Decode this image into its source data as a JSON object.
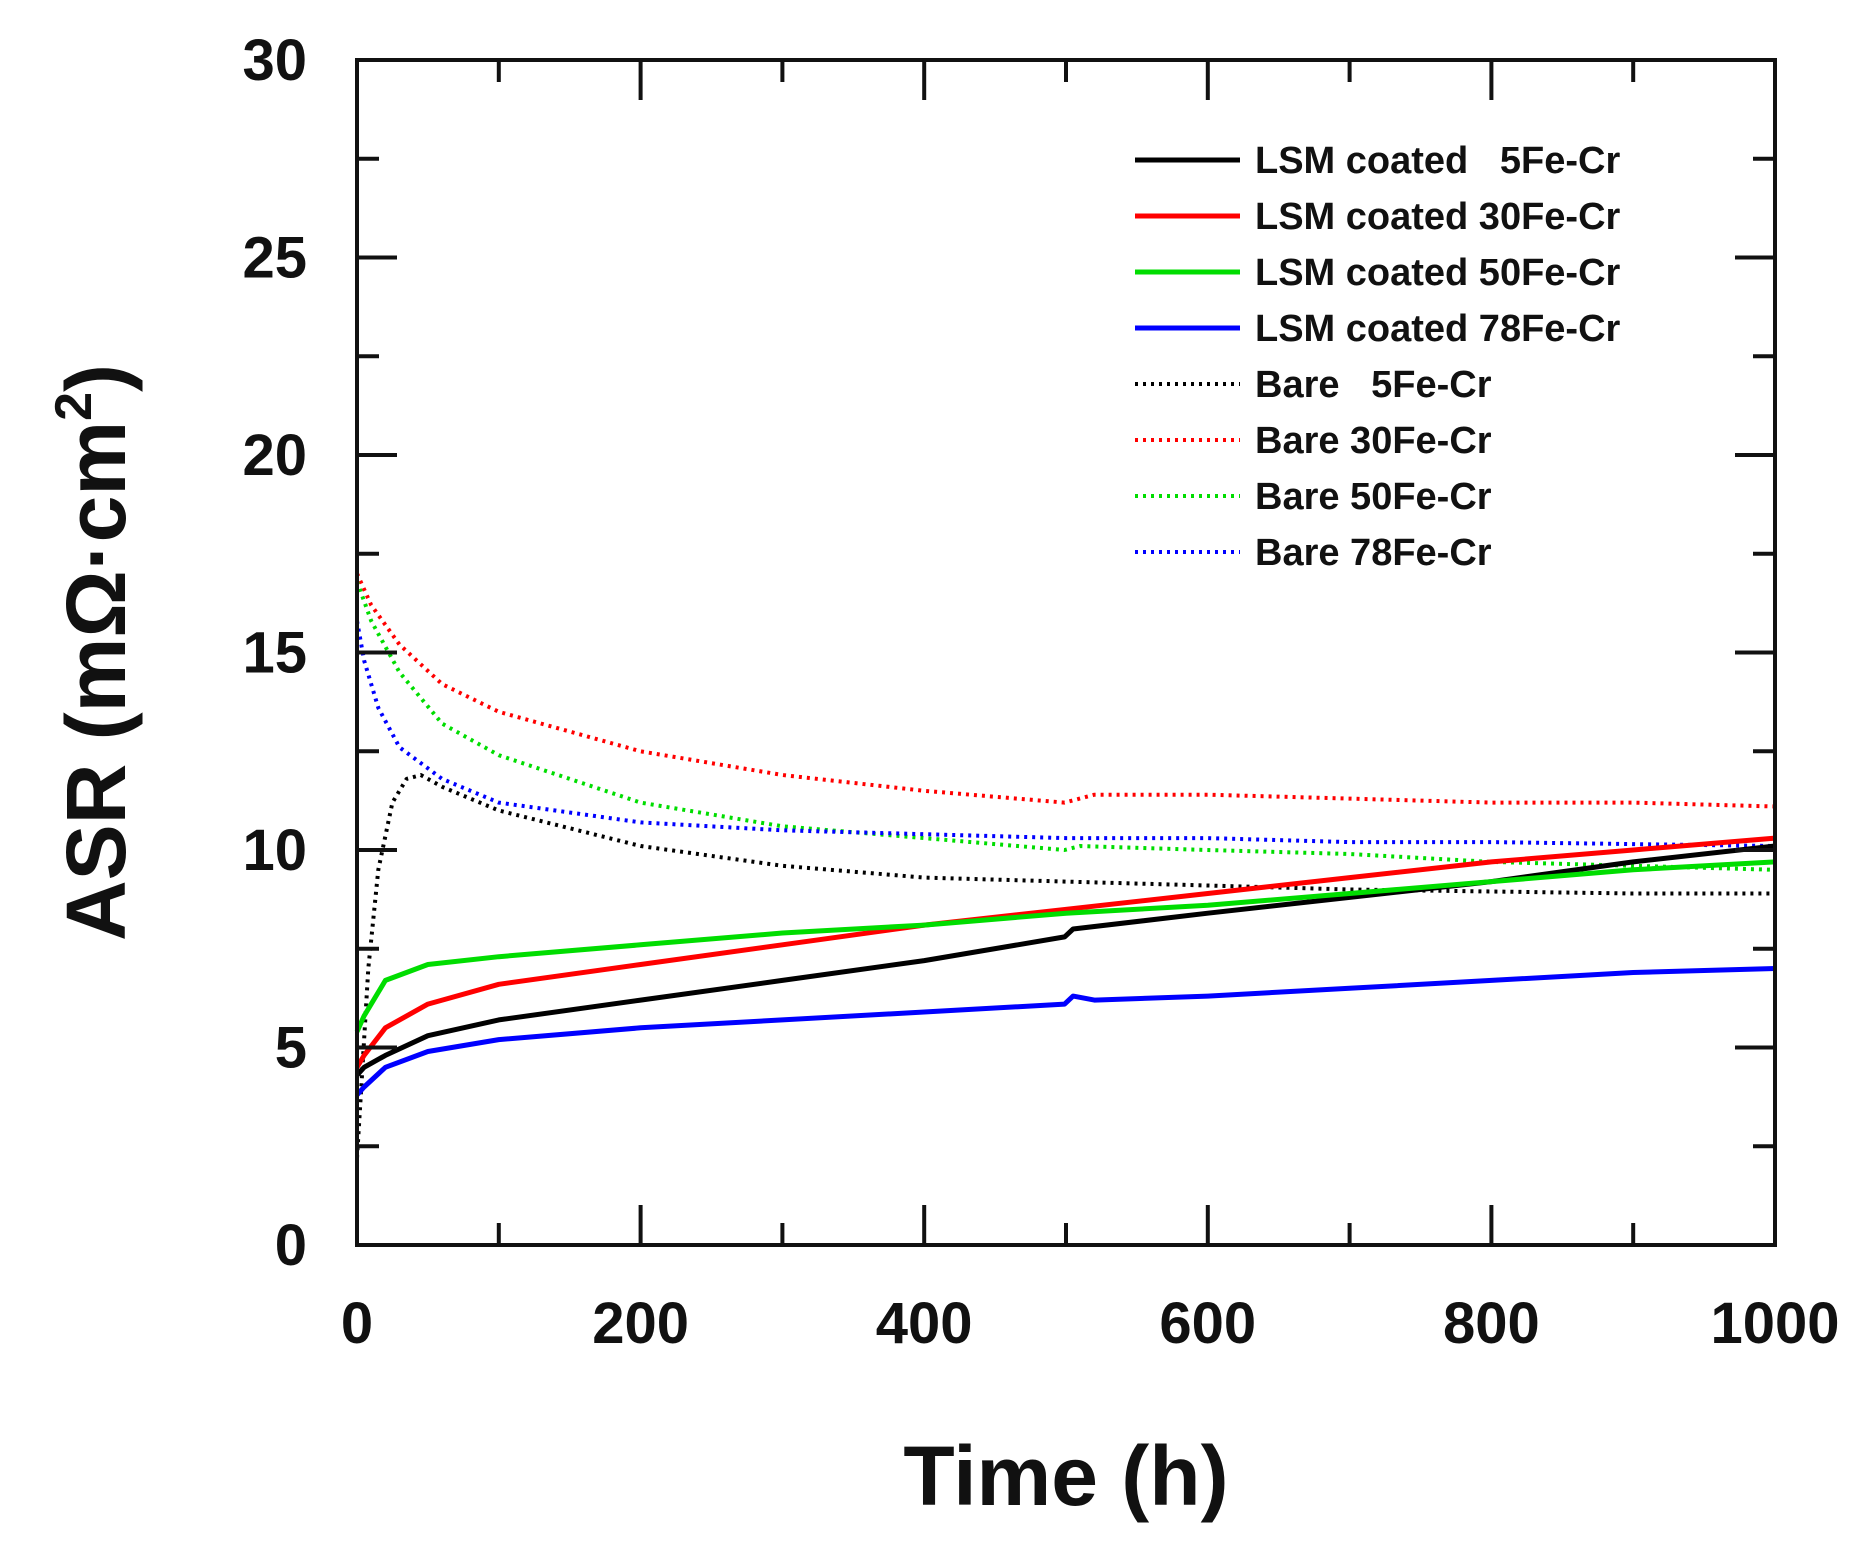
{
  "chart_data": {
    "type": "line",
    "title": "",
    "xlabel": "Time (h)",
    "ylabel": "ASR (mΩ·cm",
    "ylabel_sup": "2",
    "ylabel_close": ")",
    "xlim": [
      0,
      1000
    ],
    "ylim": [
      0,
      30
    ],
    "xticks": [
      0,
      200,
      400,
      600,
      800,
      1000
    ],
    "xtick_labels": [
      "0",
      "200",
      "400",
      "600",
      "800",
      "1000"
    ],
    "yticks": [
      0,
      5,
      10,
      15,
      20,
      25,
      30
    ],
    "ytick_labels": [
      "0",
      "5",
      "10",
      "15",
      "20",
      "25",
      "30"
    ],
    "grid": false,
    "legend_position": "top-right",
    "series": [
      {
        "name": "LSM coated   5Fe-Cr",
        "color": "#000000",
        "style": "solid",
        "x": [
          0,
          5,
          20,
          50,
          100,
          200,
          300,
          400,
          499,
          505,
          600,
          700,
          800,
          900,
          1000
        ],
        "y": [
          4.3,
          4.5,
          4.8,
          5.3,
          5.7,
          6.2,
          6.7,
          7.2,
          7.8,
          8.0,
          8.4,
          8.8,
          9.2,
          9.7,
          10.1
        ]
      },
      {
        "name": "LSM coated 30Fe-Cr",
        "color": "#ff0000",
        "style": "solid",
        "x": [
          0,
          5,
          20,
          50,
          100,
          200,
          300,
          400,
          500,
          600,
          700,
          800,
          900,
          1000
        ],
        "y": [
          4.5,
          4.8,
          5.5,
          6.1,
          6.6,
          7.1,
          7.6,
          8.1,
          8.5,
          8.9,
          9.3,
          9.7,
          10.0,
          10.3
        ]
      },
      {
        "name": "LSM coated 50Fe-Cr",
        "color": "#00dd00",
        "style": "solid",
        "x": [
          0,
          5,
          20,
          50,
          100,
          200,
          300,
          400,
          500,
          600,
          700,
          800,
          900,
          1000
        ],
        "y": [
          5.4,
          5.8,
          6.7,
          7.1,
          7.3,
          7.6,
          7.9,
          8.1,
          8.4,
          8.6,
          8.9,
          9.2,
          9.5,
          9.7
        ]
      },
      {
        "name": "LSM coated 78Fe-Cr",
        "color": "#0000ff",
        "style": "solid",
        "x": [
          0,
          5,
          20,
          50,
          100,
          200,
          300,
          400,
          499,
          505,
          520,
          600,
          700,
          800,
          900,
          1000
        ],
        "y": [
          3.8,
          4.0,
          4.5,
          4.9,
          5.2,
          5.5,
          5.7,
          5.9,
          6.1,
          6.3,
          6.2,
          6.3,
          6.5,
          6.7,
          6.9,
          7.0
        ]
      },
      {
        "name": "Bare   5Fe-Cr",
        "color": "#000000",
        "style": "dotted",
        "x": [
          0,
          3,
          8,
          15,
          25,
          35,
          45,
          60,
          100,
          200,
          300,
          400,
          500,
          600,
          700,
          800,
          900,
          1000
        ],
        "y": [
          2.2,
          4.0,
          7.0,
          9.5,
          11.2,
          11.8,
          11.9,
          11.6,
          11.0,
          10.1,
          9.6,
          9.3,
          9.2,
          9.1,
          9.0,
          8.95,
          8.9,
          8.9
        ]
      },
      {
        "name": "Bare 30Fe-Cr",
        "color": "#ff0000",
        "style": "dotted",
        "x": [
          0,
          10,
          30,
          60,
          100,
          200,
          300,
          400,
          499,
          520,
          600,
          700,
          800,
          900,
          1000
        ],
        "y": [
          17.0,
          16.2,
          15.2,
          14.2,
          13.5,
          12.5,
          11.9,
          11.5,
          11.2,
          11.4,
          11.4,
          11.3,
          11.2,
          11.2,
          11.1
        ]
      },
      {
        "name": "Bare 50Fe-Cr",
        "color": "#00dd00",
        "style": "dotted",
        "x": [
          0,
          10,
          30,
          60,
          100,
          200,
          300,
          400,
          499,
          510,
          600,
          700,
          800,
          900,
          1000
        ],
        "y": [
          16.8,
          15.8,
          14.5,
          13.2,
          12.4,
          11.2,
          10.6,
          10.3,
          10.0,
          10.1,
          10.0,
          9.9,
          9.7,
          9.6,
          9.5
        ]
      },
      {
        "name": "Bare 78Fe-Cr",
        "color": "#0000ff",
        "style": "dotted",
        "x": [
          0,
          5,
          15,
          30,
          60,
          100,
          200,
          300,
          400,
          500,
          600,
          700,
          800,
          900,
          1000
        ],
        "y": [
          15.8,
          14.8,
          13.6,
          12.6,
          11.8,
          11.2,
          10.7,
          10.5,
          10.4,
          10.3,
          10.3,
          10.2,
          10.2,
          10.15,
          10.1
        ]
      }
    ]
  }
}
